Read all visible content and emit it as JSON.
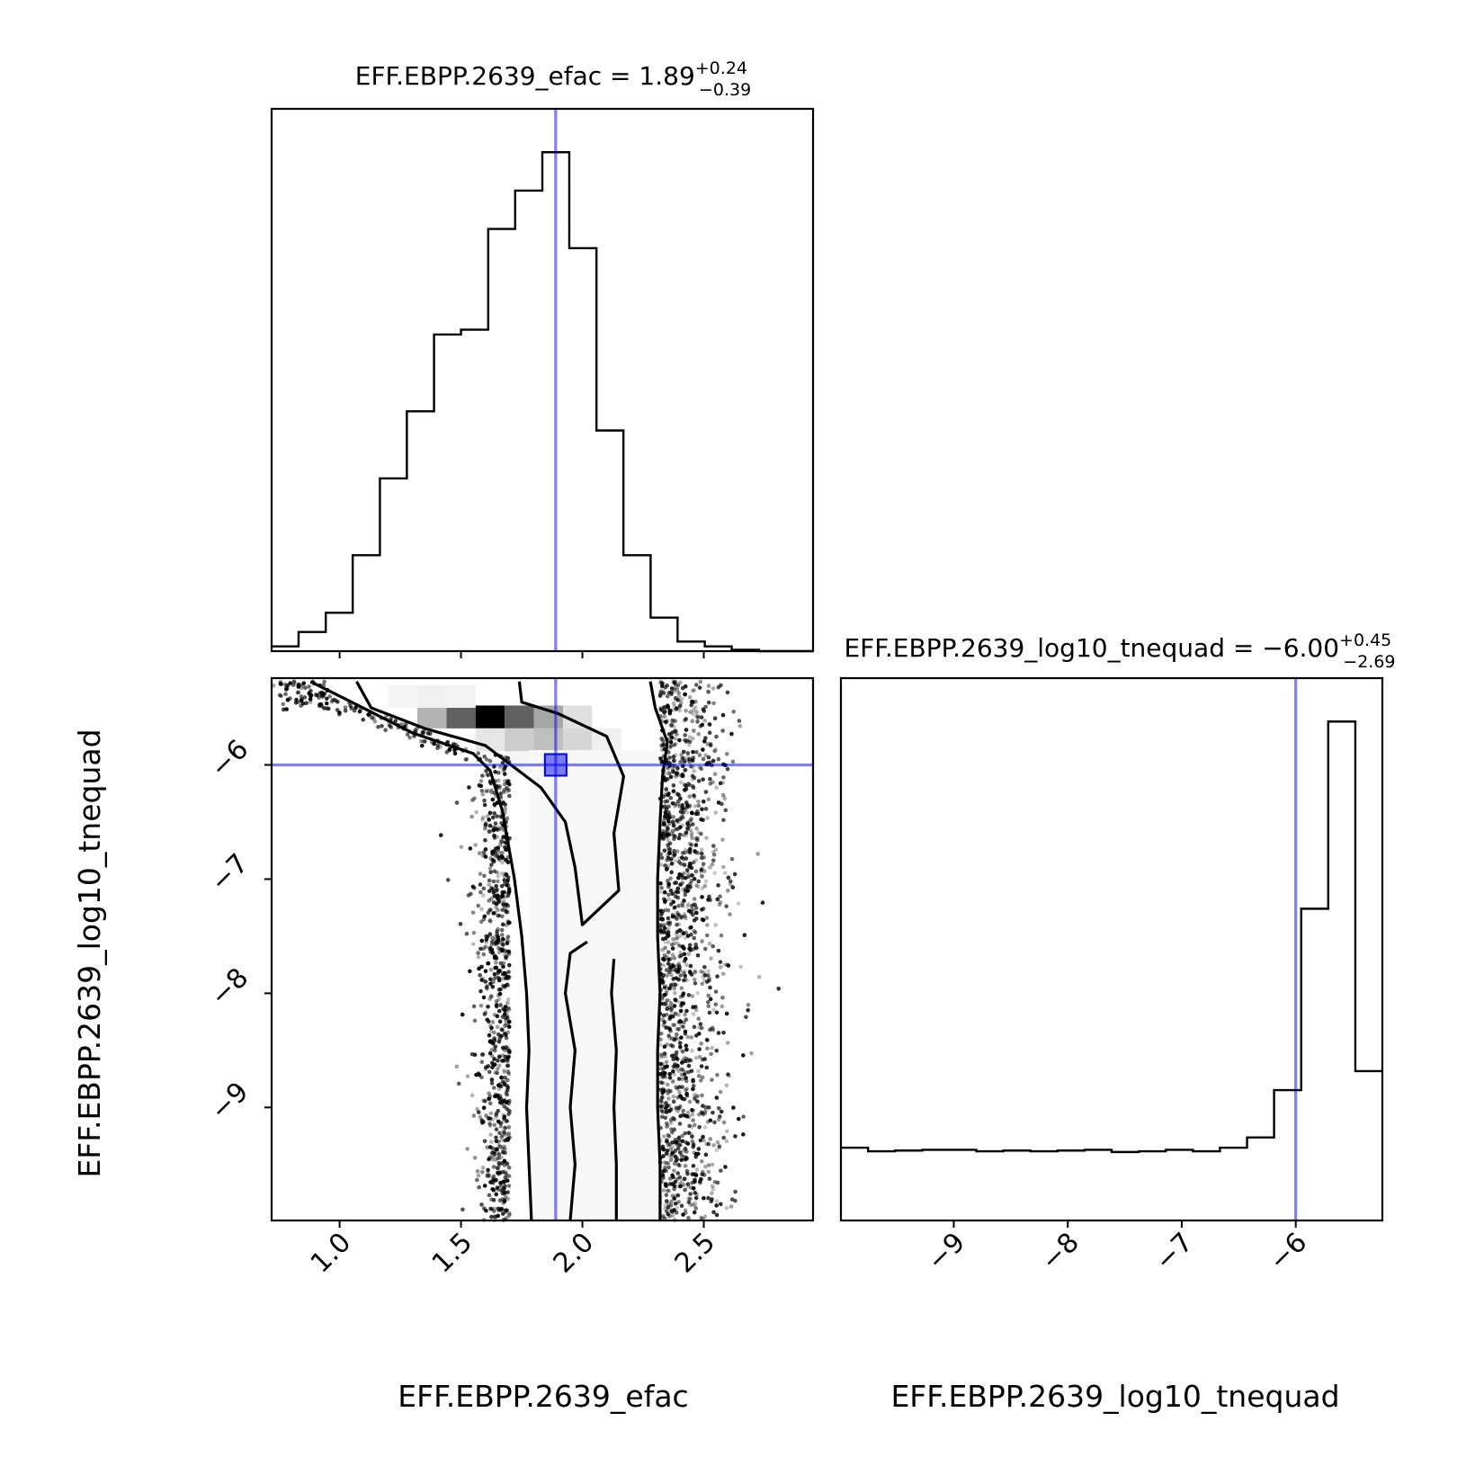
{
  "colors": {
    "truth": "#0000ee",
    "ink": "#000000",
    "background": "#ffffff"
  },
  "params": {
    "efac": {
      "name": "EFF.EBPP.2639_efac",
      "title_main": "EFF.EBPP.2639_efac = 1.89",
      "title_plus": "+0.24",
      "title_minus": "−0.39",
      "median": 1.89,
      "range": [
        0.72,
        2.95
      ],
      "ticks": [
        1.0,
        1.5,
        2.0,
        2.5
      ],
      "tick_labels": [
        "1.0",
        "1.5",
        "2.0",
        "2.5"
      ]
    },
    "tnequad": {
      "name": "EFF.EBPP.2639_log10_tnequad",
      "title_main": "EFF.EBPP.2639_log10_tnequad = −6.00",
      "title_plus": "+0.45",
      "title_minus": "−2.69",
      "median": -6.0,
      "range": [
        -9.99,
        -5.24
      ],
      "ticks": [
        -9,
        -8,
        -7,
        -6
      ],
      "tick_labels": [
        "−9",
        "−8",
        "−7",
        "−6"
      ]
    }
  },
  "chart_data": [
    {
      "type": "histogram",
      "panel": "efac-marginal",
      "title": "EFF.EBPP.2639_efac = 1.89 (+0.24 / −0.39)",
      "bin_edges": [
        0.72,
        0.831,
        0.943,
        1.054,
        1.166,
        1.277,
        1.389,
        1.5,
        1.612,
        1.723,
        1.835,
        1.946,
        2.058,
        2.169,
        2.281,
        2.392,
        2.504,
        2.615,
        2.727,
        2.838,
        2.95
      ],
      "counts": [
        1,
        4,
        8,
        20,
        36,
        50,
        66,
        67,
        88,
        96,
        104,
        84,
        46,
        20,
        7,
        2,
        1,
        0.3,
        0,
        0
      ],
      "truth_x": 1.89
    },
    {
      "type": "scatter",
      "panel": "joint-2d",
      "xlabel": "EFF.EBPP.2639_efac",
      "ylabel": "EFF.EBPP.2639_log10_tnequad",
      "xlim": [
        0.72,
        2.95
      ],
      "ylim": [
        -9.99,
        -5.24
      ],
      "truth": [
        1.89,
        -6.0
      ],
      "density_peak": [
        1.55,
        -5.6
      ],
      "contours": [
        {
          "level": "outer",
          "points": [
            [
              0.88,
              -5.27
            ],
            [
              1.05,
              -5.45
            ],
            [
              1.3,
              -5.72
            ],
            [
              1.55,
              -5.9
            ],
            [
              1.62,
              -6.05
            ],
            [
              1.67,
              -6.4
            ],
            [
              1.72,
              -7.0
            ],
            [
              1.75,
              -7.5
            ],
            [
              1.77,
              -8.0
            ],
            [
              1.78,
              -8.5
            ],
            [
              1.77,
              -9.0
            ],
            [
              1.78,
              -9.5
            ],
            [
              1.79,
              -9.99
            ]
          ]
        },
        {
          "level": "outer-right",
          "points": [
            [
              2.28,
              -5.27
            ],
            [
              2.3,
              -5.5
            ],
            [
              2.35,
              -5.8
            ],
            [
              2.33,
              -6.1
            ],
            [
              2.32,
              -6.5
            ],
            [
              2.31,
              -7.0
            ],
            [
              2.31,
              -7.5
            ],
            [
              2.32,
              -8.0
            ],
            [
              2.31,
              -8.5
            ],
            [
              2.31,
              -9.0
            ],
            [
              2.32,
              -9.5
            ],
            [
              2.32,
              -9.99
            ]
          ]
        },
        {
          "level": "inner",
          "points": [
            [
              1.07,
              -5.27
            ],
            [
              1.13,
              -5.5
            ],
            [
              1.35,
              -5.68
            ],
            [
              1.6,
              -5.83
            ],
            [
              1.83,
              -6.2
            ],
            [
              1.93,
              -6.5
            ],
            [
              1.97,
              -6.9
            ],
            [
              2.0,
              -7.4
            ],
            [
              2.15,
              -7.1
            ],
            [
              2.13,
              -6.6
            ],
            [
              2.17,
              -6.1
            ],
            [
              2.1,
              -5.75
            ],
            [
              1.9,
              -5.55
            ],
            [
              1.75,
              -5.45
            ],
            [
              1.74,
              -5.27
            ]
          ]
        },
        {
          "level": "inner-low",
          "points": [
            [
              2.02,
              -7.55
            ],
            [
              1.95,
              -7.65
            ],
            [
              1.93,
              -8.0
            ],
            [
              1.97,
              -8.5
            ],
            [
              1.95,
              -9.0
            ],
            [
              1.97,
              -9.5
            ],
            [
              1.95,
              -9.99
            ]
          ]
        },
        {
          "level": "inner-low-right",
          "points": [
            [
              2.13,
              -7.7
            ],
            [
              2.12,
              -8.0
            ],
            [
              2.14,
              -8.5
            ],
            [
              2.13,
              -9.0
            ],
            [
              2.14,
              -9.5
            ],
            [
              2.14,
              -9.99
            ]
          ]
        }
      ]
    },
    {
      "type": "histogram",
      "panel": "tnequad-marginal",
      "title": "EFF.EBPP.2639_log10_tnequad = −6.00 (+0.45 / −2.69)",
      "bin_edges": [
        -9.99,
        -9.752,
        -9.515,
        -9.277,
        -9.04,
        -8.802,
        -8.565,
        -8.327,
        -8.09,
        -7.852,
        -7.615,
        -7.377,
        -7.14,
        -6.902,
        -6.665,
        -6.427,
        -6.19,
        -5.952,
        -5.715,
        -5.477,
        -5.24
      ],
      "counts": [
        1.0,
        0.95,
        0.96,
        0.97,
        0.97,
        0.95,
        0.96,
        0.95,
        0.96,
        0.97,
        0.94,
        0.95,
        0.97,
        0.95,
        1.0,
        1.14,
        1.79,
        4.28,
        6.85,
        2.05
      ],
      "truth_x": -6.0
    }
  ]
}
